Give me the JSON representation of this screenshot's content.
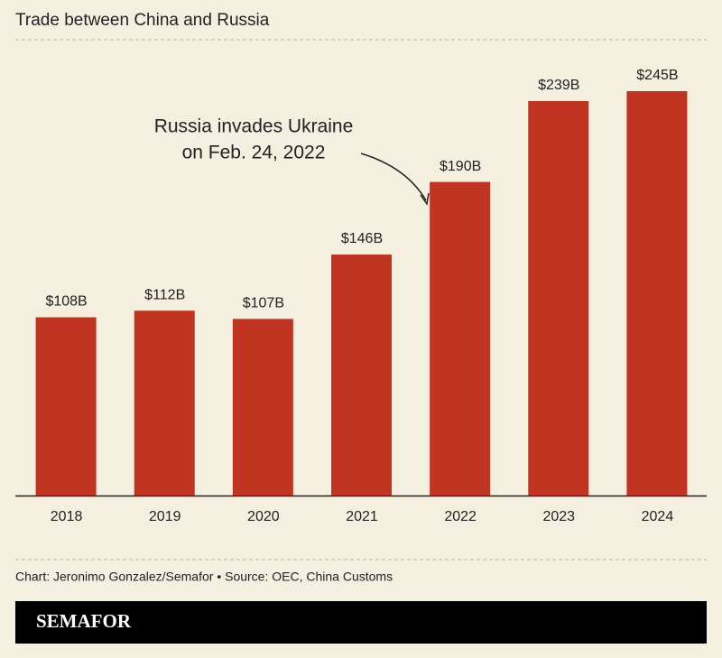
{
  "chart_data": {
    "type": "bar",
    "title": "Trade between China and Russia",
    "categories": [
      "2018",
      "2019",
      "2020",
      "2021",
      "2022",
      "2023",
      "2024"
    ],
    "values": [
      108,
      112,
      107,
      146,
      190,
      239,
      245
    ],
    "value_labels": [
      "$108B",
      "$112B",
      "$107B",
      "$146B",
      "$190B",
      "$239B",
      "$245B"
    ],
    "color": "#c03421",
    "annotation": [
      "Russia invades Ukraine",
      "on Feb. 24, 2022"
    ],
    "source": "Chart: Jeronimo Gonzalez/Semafor • Source: OEC, China Customs",
    "brand": "SEMAFOR"
  }
}
